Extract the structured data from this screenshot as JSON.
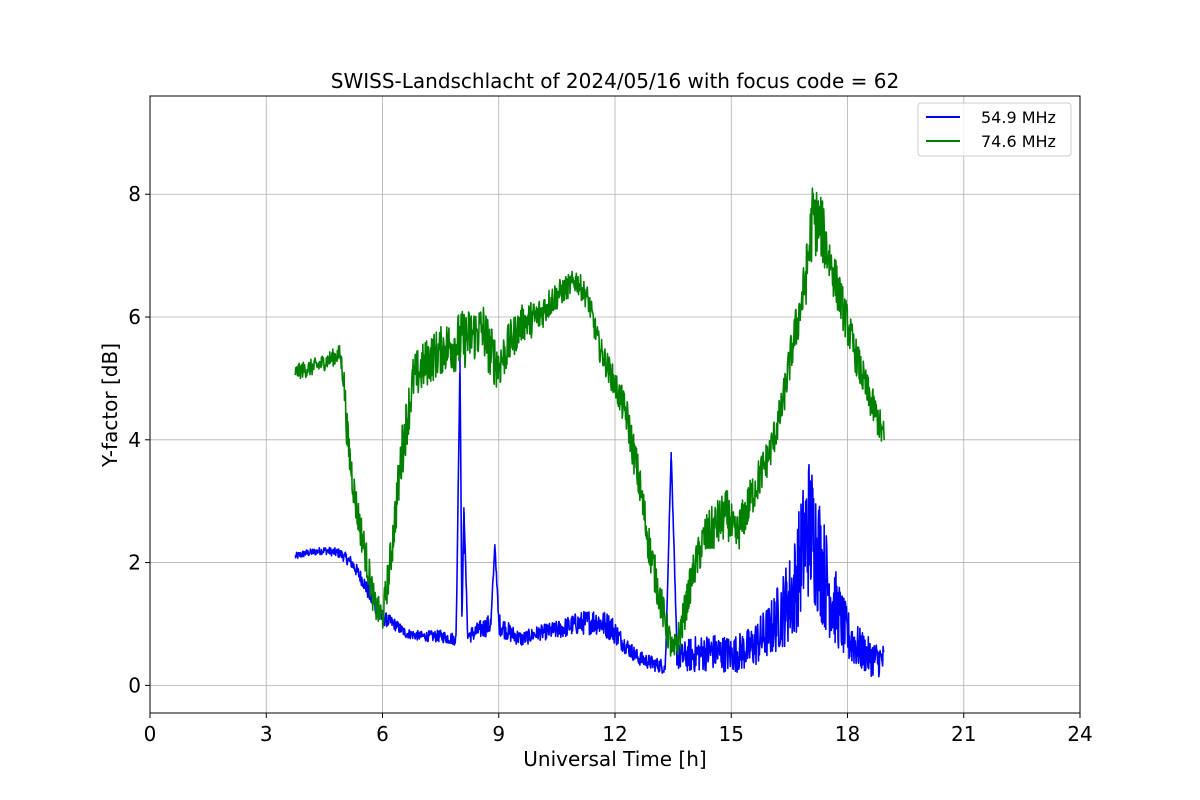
{
  "chart_data": {
    "type": "line",
    "title": "SWISS-Landschlacht of 2024/05/16 with focus code = 62",
    "xlabel": "Universal Time [h]",
    "ylabel": "Y-factor [dB]",
    "xlim": [
      0,
      24
    ],
    "ylim": [
      -0.45,
      9.6
    ],
    "xticks": [
      0,
      3,
      6,
      9,
      12,
      15,
      18,
      21,
      24
    ],
    "yticks": [
      0,
      2,
      4,
      6,
      8
    ],
    "grid": true,
    "legend_position": "top-right",
    "series": [
      {
        "name": "54.9 MHz",
        "color": "#0000ff",
        "x": [
          3.75,
          4.0,
          4.5,
          4.9,
          5.2,
          5.5,
          5.8,
          6.0,
          6.3,
          6.6,
          7.0,
          7.5,
          7.9,
          8.0,
          8.05,
          8.1,
          8.2,
          8.5,
          8.8,
          8.9,
          9.0,
          9.3,
          9.6,
          10.0,
          10.5,
          11.0,
          11.5,
          11.9,
          12.2,
          12.6,
          13.0,
          13.3,
          13.45,
          13.6,
          14.0,
          14.5,
          15.0,
          15.5,
          16.0,
          16.3,
          16.6,
          16.8,
          17.0,
          17.2,
          17.4,
          17.6,
          17.8,
          18.0,
          18.3,
          18.6,
          18.95
        ],
        "y": [
          2.1,
          2.15,
          2.2,
          2.15,
          2.0,
          1.7,
          1.3,
          1.1,
          1.0,
          0.85,
          0.8,
          0.8,
          0.75,
          5.3,
          1.0,
          2.9,
          0.8,
          0.9,
          1.0,
          2.3,
          1.0,
          0.85,
          0.75,
          0.85,
          0.9,
          1.0,
          1.05,
          0.95,
          0.7,
          0.45,
          0.35,
          0.3,
          3.8,
          0.45,
          0.5,
          0.55,
          0.5,
          0.6,
          0.9,
          1.2,
          1.5,
          2.1,
          2.6,
          2.3,
          1.8,
          1.4,
          1.1,
          0.8,
          0.6,
          0.45,
          0.4
        ],
        "noise": [
          0.06,
          0.06,
          0.06,
          0.08,
          0.1,
          0.12,
          0.15,
          0.12,
          0.1,
          0.08,
          0.08,
          0.1,
          0.1,
          0.0,
          0.1,
          0.0,
          0.12,
          0.15,
          0.18,
          0.0,
          0.18,
          0.15,
          0.12,
          0.12,
          0.15,
          0.18,
          0.22,
          0.22,
          0.15,
          0.12,
          0.12,
          0.12,
          0.0,
          0.2,
          0.3,
          0.3,
          0.3,
          0.35,
          0.45,
          0.6,
          0.8,
          1.0,
          1.2,
          1.1,
          0.9,
          0.7,
          0.55,
          0.45,
          0.35,
          0.3,
          0.28
        ]
      },
      {
        "name": "74.6 MHz",
        "color": "#008000",
        "x": [
          3.75,
          4.0,
          4.3,
          4.6,
          4.9,
          5.0,
          5.1,
          5.3,
          5.6,
          5.8,
          6.0,
          6.2,
          6.5,
          6.8,
          7.2,
          7.6,
          8.0,
          8.3,
          8.6,
          8.8,
          9.0,
          9.3,
          9.6,
          10.0,
          10.4,
          10.8,
          11.0,
          11.3,
          11.6,
          12.0,
          12.3,
          12.6,
          12.9,
          13.2,
          13.5,
          13.7,
          14.0,
          14.3,
          14.6,
          14.9,
          15.1,
          15.3,
          15.6,
          16.0,
          16.3,
          16.6,
          16.9,
          17.1,
          17.3,
          17.6,
          17.9,
          18.2,
          18.5,
          18.8,
          18.95
        ],
        "y": [
          5.1,
          5.15,
          5.2,
          5.3,
          5.4,
          5.0,
          4.0,
          3.0,
          2.0,
          1.3,
          1.1,
          2.0,
          3.8,
          5.0,
          5.3,
          5.5,
          5.6,
          5.7,
          5.8,
          5.4,
          5.2,
          5.6,
          5.9,
          6.0,
          6.3,
          6.5,
          6.6,
          6.3,
          5.5,
          4.9,
          4.4,
          3.4,
          2.2,
          1.3,
          0.5,
          0.9,
          1.8,
          2.4,
          2.6,
          2.8,
          2.4,
          2.7,
          3.2,
          3.8,
          4.5,
          5.6,
          6.5,
          7.6,
          7.5,
          6.8,
          6.1,
          5.4,
          4.8,
          4.3,
          4.0
        ],
        "noise": [
          0.12,
          0.14,
          0.14,
          0.14,
          0.15,
          0.25,
          0.35,
          0.3,
          0.3,
          0.25,
          0.25,
          0.35,
          0.45,
          0.4,
          0.4,
          0.4,
          0.5,
          0.45,
          0.45,
          0.45,
          0.4,
          0.35,
          0.3,
          0.3,
          0.25,
          0.2,
          0.2,
          0.2,
          0.22,
          0.25,
          0.3,
          0.35,
          0.35,
          0.3,
          0.25,
          0.3,
          0.3,
          0.35,
          0.4,
          0.4,
          0.35,
          0.35,
          0.35,
          0.3,
          0.3,
          0.35,
          0.45,
          0.6,
          0.55,
          0.4,
          0.35,
          0.3,
          0.3,
          0.28,
          0.3
        ]
      }
    ]
  }
}
